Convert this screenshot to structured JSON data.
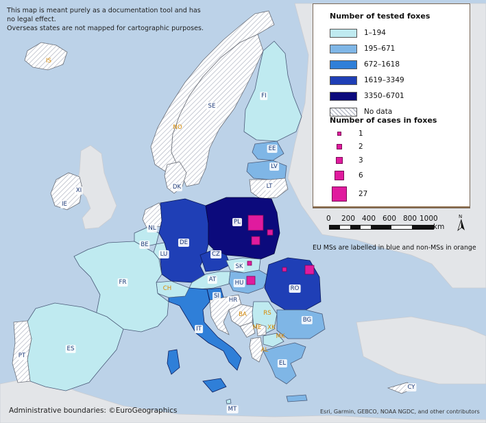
{
  "disclaimer": {
    "line1": "This map is meant purely as a documentation tool and has",
    "line2": "no legal effect.",
    "line3": "Overseas states are not mapped for cartographic purposes."
  },
  "legend": {
    "tested_title": "Number of tested foxes",
    "classes": [
      {
        "label": "1–194",
        "color": "#bfeaf0"
      },
      {
        "label": "195–671",
        "color": "#7fb6e6"
      },
      {
        "label": "672–1618",
        "color": "#2f7fd8"
      },
      {
        "label": "1619–3349",
        "color": "#1f3fb6"
      },
      {
        "label": "3350–6701",
        "color": "#0c0a7c"
      },
      {
        "label": "No data",
        "color": "hatched"
      }
    ],
    "cases_title": "Number of cases in foxes",
    "case_sizes": [
      {
        "label": "1",
        "value": 1
      },
      {
        "label": "2",
        "value": 2
      },
      {
        "label": "3",
        "value": 3
      },
      {
        "label": "6",
        "value": 6
      },
      {
        "label": "27",
        "value": 27
      }
    ]
  },
  "scale": {
    "ticks": [
      "0",
      "200",
      "400",
      "600",
      "800",
      "1000"
    ],
    "unit": "km"
  },
  "north_label": "N",
  "ms_note": "EU MSs are labelled in blue and non-MSs in orange",
  "admin_boundaries": "Administrative boundaries: ©EuroGeographics",
  "credits": "Esri, Garmin, GEBCO, NOAA NGDC, and other contributors",
  "countries": [
    {
      "code": "IS",
      "member": false,
      "class": "No data"
    },
    {
      "code": "NO",
      "member": false,
      "class": "No data"
    },
    {
      "code": "SE",
      "member": true,
      "class": "No data"
    },
    {
      "code": "FI",
      "member": true,
      "class": "1–194"
    },
    {
      "code": "EE",
      "member": true,
      "class": "195–671"
    },
    {
      "code": "LV",
      "member": true,
      "class": "195–671"
    },
    {
      "code": "LT",
      "member": true,
      "class": "No data"
    },
    {
      "code": "DK",
      "member": true,
      "class": "No data"
    },
    {
      "code": "XI",
      "member": false,
      "class": "No data"
    },
    {
      "code": "IE",
      "member": true,
      "class": "No data"
    },
    {
      "code": "NL",
      "member": true,
      "class": "No data"
    },
    {
      "code": "BE",
      "member": true,
      "class": "1–194"
    },
    {
      "code": "LU",
      "member": true,
      "class": "1–194"
    },
    {
      "code": "DE",
      "member": true,
      "class": "1619–3349"
    },
    {
      "code": "PL",
      "member": true,
      "class": "3350–6701"
    },
    {
      "code": "CZ",
      "member": true,
      "class": "1619–3349"
    },
    {
      "code": "SK",
      "member": true,
      "class": "1–194"
    },
    {
      "code": "HU",
      "member": true,
      "class": "195–671"
    },
    {
      "code": "RO",
      "member": true,
      "class": "1619–3349"
    },
    {
      "code": "FR",
      "member": true,
      "class": "1–194"
    },
    {
      "code": "CH",
      "member": false,
      "class": "1–194"
    },
    {
      "code": "AT",
      "member": true,
      "class": "1–194"
    },
    {
      "code": "SI",
      "member": true,
      "class": "672–1618"
    },
    {
      "code": "HR",
      "member": true,
      "class": "No data"
    },
    {
      "code": "BA",
      "member": false,
      "class": "No data"
    },
    {
      "code": "RS",
      "member": false,
      "class": "1–194"
    },
    {
      "code": "BG",
      "member": true,
      "class": "195–671"
    },
    {
      "code": "ME",
      "member": false,
      "class": "No data"
    },
    {
      "code": "XK",
      "member": false,
      "class": "No data"
    },
    {
      "code": "MK",
      "member": false,
      "class": "1–194"
    },
    {
      "code": "AL",
      "member": false,
      "class": "No data"
    },
    {
      "code": "IT",
      "member": true,
      "class": "672–1618"
    },
    {
      "code": "ES",
      "member": true,
      "class": "1–194"
    },
    {
      "code": "PT",
      "member": true,
      "class": "No data"
    },
    {
      "code": "EL",
      "member": true,
      "class": "195–671"
    },
    {
      "code": "MT",
      "member": true,
      "class": "1–194"
    },
    {
      "code": "CY",
      "member": true,
      "class": "No data"
    }
  ]
}
